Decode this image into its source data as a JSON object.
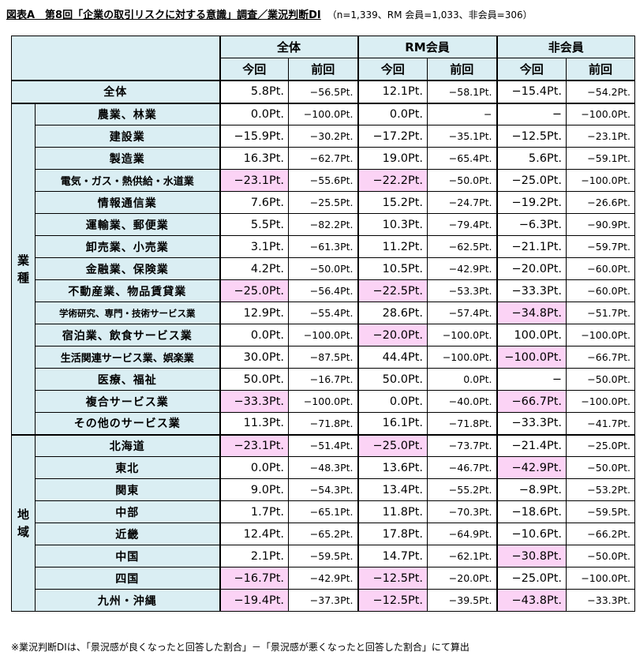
{
  "title": {
    "main": "図表A　第8回「企業の取引リスクに対する意識」調査／業況判断DI",
    "sub": "（n=1,339、RM 会員=1,033、非会員=306）"
  },
  "groups": [
    "全体",
    "RM会員",
    "非会員"
  ],
  "subheaders": [
    "今回",
    "前回"
  ],
  "total_row": {
    "label": "全体",
    "values": [
      "5.8Pt.",
      "−56.5Pt.",
      "12.1Pt.",
      "−58.1Pt.",
      "−15.4Pt.",
      "−54.2Pt."
    ],
    "highlight": []
  },
  "sections": [
    {
      "label": "業種",
      "rows": [
        {
          "label": "農業、林業",
          "values": [
            "0.0Pt.",
            "−100.0Pt.",
            "0.0Pt.",
            "−",
            "−",
            "−100.0Pt."
          ],
          "highlight": []
        },
        {
          "label": "建設業",
          "values": [
            "−15.9Pt.",
            "−30.2Pt.",
            "−17.2Pt.",
            "−35.1Pt.",
            "−12.5Pt.",
            "−23.1Pt."
          ],
          "highlight": []
        },
        {
          "label": "製造業",
          "values": [
            "16.3Pt.",
            "−62.7Pt.",
            "19.0Pt.",
            "−65.4Pt.",
            "5.6Pt.",
            "−59.1Pt."
          ],
          "highlight": []
        },
        {
          "label": "電気・ガス・熱供給・水道業",
          "values": [
            "−23.1Pt.",
            "−55.6Pt.",
            "−22.2Pt.",
            "−50.0Pt.",
            "−25.0Pt.",
            "−100.0Pt."
          ],
          "highlight": [
            0,
            2
          ],
          "size": "mid"
        },
        {
          "label": "情報通信業",
          "values": [
            "7.6Pt.",
            "−25.5Pt.",
            "15.2Pt.",
            "−24.7Pt.",
            "−19.2Pt.",
            "−26.6Pt."
          ],
          "highlight": []
        },
        {
          "label": "運輸業、郵便業",
          "values": [
            "5.5Pt.",
            "−82.2Pt.",
            "10.3Pt.",
            "−79.4Pt.",
            "−6.3Pt.",
            "−90.9Pt."
          ],
          "highlight": []
        },
        {
          "label": "卸売業、小売業",
          "values": [
            "3.1Pt.",
            "−61.3Pt.",
            "11.2Pt.",
            "−62.5Pt.",
            "−21.1Pt.",
            "−59.7Pt."
          ],
          "highlight": []
        },
        {
          "label": "金融業、保険業",
          "values": [
            "4.2Pt.",
            "−50.0Pt.",
            "10.5Pt.",
            "−42.9Pt.",
            "−20.0Pt.",
            "−60.0Pt."
          ],
          "highlight": []
        },
        {
          "label": "不動産業、物品賃貸業",
          "values": [
            "−25.0Pt.",
            "−56.4Pt.",
            "−22.5Pt.",
            "−53.3Pt.",
            "−33.3Pt.",
            "−60.0Pt."
          ],
          "highlight": [
            0,
            2
          ]
        },
        {
          "label": "学術研究、専門・技術サービス業",
          "values": [
            "12.9Pt.",
            "−55.4Pt.",
            "28.6Pt.",
            "−57.4Pt.",
            "−34.8Pt.",
            "−51.7Pt."
          ],
          "highlight": [
            4
          ],
          "size": "small"
        },
        {
          "label": "宿泊業、飲食サービス業",
          "values": [
            "0.0Pt.",
            "−100.0Pt.",
            "−20.0Pt.",
            "−100.0Pt.",
            "100.0Pt.",
            "−100.0Pt."
          ],
          "highlight": [
            2
          ]
        },
        {
          "label": "生活関連サービス業、娯楽業",
          "values": [
            "30.0Pt.",
            "−87.5Pt.",
            "44.4Pt.",
            "−100.0Pt.",
            "−100.0Pt.",
            "−66.7Pt."
          ],
          "highlight": [
            4
          ],
          "size": "mid"
        },
        {
          "label": "医療、福祉",
          "values": [
            "50.0Pt.",
            "−16.7Pt.",
            "50.0Pt.",
            "0.0Pt.",
            "−",
            "−50.0Pt."
          ],
          "highlight": []
        },
        {
          "label": "複合サービス業",
          "values": [
            "−33.3Pt.",
            "−100.0Pt.",
            "0.0Pt.",
            "−40.0Pt.",
            "−66.7Pt.",
            "−100.0Pt."
          ],
          "highlight": [
            0,
            4
          ]
        },
        {
          "label": "その他のサービス業",
          "values": [
            "11.3Pt.",
            "−71.8Pt.",
            "16.1Pt.",
            "−71.8Pt.",
            "−33.3Pt.",
            "−41.7Pt."
          ],
          "highlight": []
        }
      ]
    },
    {
      "label": "地域",
      "rows": [
        {
          "label": "北海道",
          "values": [
            "−23.1Pt.",
            "−51.4Pt.",
            "−25.0Pt.",
            "−73.7Pt.",
            "−21.4Pt.",
            "−25.0Pt."
          ],
          "highlight": [
            0,
            2
          ]
        },
        {
          "label": "東北",
          "values": [
            "0.0Pt.",
            "−48.3Pt.",
            "13.6Pt.",
            "−46.7Pt.",
            "−42.9Pt.",
            "−50.0Pt."
          ],
          "highlight": [
            4
          ]
        },
        {
          "label": "関東",
          "values": [
            "9.0Pt.",
            "−54.3Pt.",
            "13.4Pt.",
            "−55.2Pt.",
            "−8.9Pt.",
            "−53.2Pt."
          ],
          "highlight": []
        },
        {
          "label": "中部",
          "values": [
            "1.7Pt.",
            "−65.1Pt.",
            "11.8Pt.",
            "−70.3Pt.",
            "−18.6Pt.",
            "−59.5Pt."
          ],
          "highlight": []
        },
        {
          "label": "近畿",
          "values": [
            "12.4Pt.",
            "−65.2Pt.",
            "17.8Pt.",
            "−64.9Pt.",
            "−10.6Pt.",
            "−66.2Pt."
          ],
          "highlight": []
        },
        {
          "label": "中国",
          "values": [
            "2.1Pt.",
            "−59.5Pt.",
            "14.7Pt.",
            "−62.1Pt.",
            "−30.8Pt.",
            "−50.0Pt."
          ],
          "highlight": [
            4
          ]
        },
        {
          "label": "四国",
          "values": [
            "−16.7Pt.",
            "−42.9Pt.",
            "−12.5Pt.",
            "−20.0Pt.",
            "−25.0Pt.",
            "−100.0Pt."
          ],
          "highlight": [
            0,
            2
          ]
        },
        {
          "label": "九州・沖縄",
          "values": [
            "−19.4Pt.",
            "−37.3Pt.",
            "−12.5Pt.",
            "−39.5Pt.",
            "−43.8Pt.",
            "−33.3Pt."
          ],
          "highlight": [
            0,
            2,
            4
          ]
        }
      ]
    }
  ],
  "footnote": "※業況判断DIは、「景況感が良くなったと回答した割合」－「景況感が悪くなったと回答した割合」にて算出",
  "colors": {
    "header_bg": "#daeef3",
    "highlight_bg": "#fbd3f5",
    "border": "#000000"
  }
}
